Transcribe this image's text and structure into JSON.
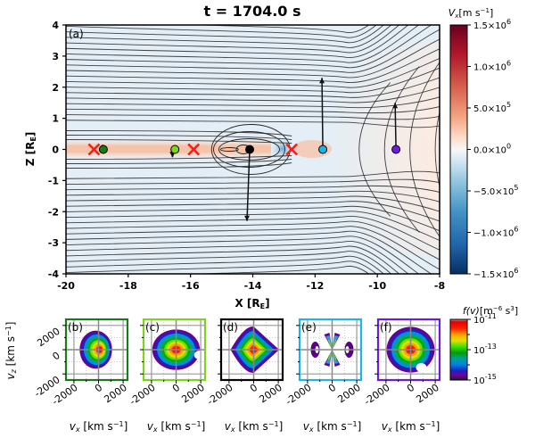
{
  "chart_data": [
    {
      "type": "heatmap",
      "panel_label": "(a)",
      "title": "t = 1704.0 s",
      "xlabel": "X [R_E]",
      "ylabel": "Z [R_E]",
      "xlim": [
        -20,
        -8
      ],
      "ylim": [
        -4,
        4
      ],
      "xticks": [
        -20,
        -18,
        -16,
        -14,
        -12,
        -10,
        -8
      ],
      "yticks": [
        -4,
        -3,
        -2,
        -1,
        0,
        1,
        2,
        3,
        4
      ],
      "xtick_labels": [
        "-20",
        "-18",
        "-16",
        "-14",
        "-12",
        "-10",
        "-8"
      ],
      "ytick_labels": [
        "-4",
        "-3",
        "-2",
        "-1",
        "0",
        "1",
        "2",
        "3",
        "4"
      ],
      "field": "Vx",
      "overlay": "magnetic field lines (black contours)",
      "x_points": [
        {
          "x": -19.1,
          "z": 0.0,
          "marker": "x",
          "color": "#ff1a1a"
        },
        {
          "x": -15.9,
          "z": 0.0,
          "marker": "x",
          "color": "#ff1a1a"
        },
        {
          "x": -12.75,
          "z": 0.0,
          "marker": "x",
          "color": "#ff1a1a"
        }
      ],
      "vdf_locations": [
        {
          "id": "b",
          "x": -18.8,
          "z": 0.0,
          "color": "#1a7a1a",
          "arrow_dz": 0.15
        },
        {
          "id": "c",
          "x": -16.5,
          "z": 0.0,
          "color": "#7ed321",
          "arrow_dz": -0.25
        },
        {
          "id": "d",
          "x": -14.1,
          "z": 0.0,
          "color": "#000000",
          "arrow_dz": -2.3
        },
        {
          "id": "e",
          "x": -11.75,
          "z": 0.0,
          "color": "#1fb3e8",
          "arrow_dz": 2.3
        },
        {
          "id": "f",
          "x": -9.4,
          "z": 0.0,
          "color": "#6a1de0",
          "arrow_dz": 1.5
        }
      ],
      "colorbar": {
        "label": "V_x [m s^-1]",
        "range": [
          -1500000,
          1500000
        ],
        "ticks": [
          1500000,
          1000000,
          500000,
          0,
          -500000,
          -1000000,
          -1500000
        ],
        "tick_labels": [
          "1.5×10^6",
          "1.0×10^6",
          "5.0×10^5",
          "0.0×10^0",
          "−5.0×10^5",
          "−1.0×10^6",
          "−1.5×10^6"
        ],
        "colormap": "RdBu_r"
      }
    },
    {
      "type": "heatmap",
      "description": "velocity distribution functions",
      "xlabel": "v_x [km s^-1]",
      "ylabel": "v_z [km s^-1]",
      "xlim": [
        -2500,
        2500
      ],
      "ylim": [
        -2500,
        2500
      ],
      "xtick_labels": [
        "-2000",
        "0",
        "2000"
      ],
      "ytick_labels": [
        "2000",
        "0",
        "-2000"
      ],
      "panels": [
        {
          "label": "(b)",
          "border": "#1a7a1a",
          "shape": "shifted-core",
          "core_vx": 0,
          "extent": 0.7
        },
        {
          "label": "(c)",
          "border": "#7ed321",
          "shape": "notched",
          "core_vx": 0,
          "extent": 0.78
        },
        {
          "label": "(d)",
          "border": "#000000",
          "shape": "diamond",
          "core_vx": 0,
          "extent": 0.85
        },
        {
          "label": "(e)",
          "border": "#1fb3e8",
          "shape": "x-beams",
          "core_vx": 0,
          "extent": 0.6
        },
        {
          "label": "(f)",
          "border": "#6a1de0",
          "shape": "round",
          "core_vx": 0,
          "extent": 0.88
        }
      ],
      "colorbar": {
        "label": "f(v) [m^-6 s^3]",
        "scale": "log",
        "range": [
          1e-15,
          1e-11
        ],
        "tick_labels": [
          "10^-11",
          "10^-13",
          "10^-15"
        ]
      }
    }
  ],
  "labels": {
    "title": "t = 1704.0 s",
    "panel_a": "(a)",
    "xlabel_main": "X [R",
    "xlabel_sub": "E",
    "xlabel_end": "]",
    "ylabel_main": "Z [R",
    "cb1_label_v": "V",
    "cb1_label_sub": "x",
    "cb1_label_unit": "[m s",
    "cb1_label_exp": "−1",
    "cb1_label_end": "]",
    "cb2_label_f": "f(v)",
    "cb2_label_unit": "[m",
    "cb2_label_exp1": "−6",
    "cb2_label_s": " s",
    "cb2_label_exp2": "3",
    "cb2_label_end": "]",
    "vx_label": "v",
    "vx_sub": "x",
    "v_unit": "[km s",
    "v_exp": "−1",
    "v_end": "]",
    "vz_label": "v",
    "vz_sub": "z"
  }
}
